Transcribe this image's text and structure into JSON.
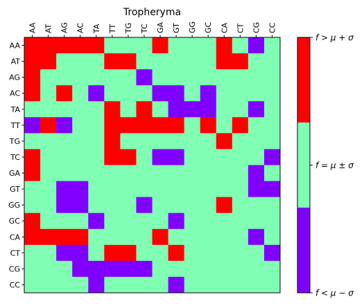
{
  "chart_data": {
    "type": "heatmap",
    "title": "Tropheryma",
    "xlabels": [
      "AA",
      "AT",
      "AG",
      "AC",
      "TA",
      "TT",
      "TG",
      "TC",
      "GA",
      "GT",
      "GG",
      "GC",
      "CA",
      "CT",
      "CG",
      "CC"
    ],
    "ylabels": [
      "AA",
      "AT",
      "AG",
      "AC",
      "TA",
      "TT",
      "TG",
      "TC",
      "GA",
      "GT",
      "GG",
      "GC",
      "CA",
      "CT",
      "CG",
      "CC"
    ],
    "xlabel_position": "top",
    "levels": [
      -1,
      0,
      1
    ],
    "level_meaning": {
      "-1": "f < mu - sigma",
      "0": "f = mu +/- sigma",
      "1": "f > mu + sigma"
    },
    "values": [
      [
        1,
        1,
        1,
        1,
        1,
        0,
        0,
        0,
        1,
        0,
        0,
        0,
        1,
        0,
        -1,
        0
      ],
      [
        1,
        1,
        0,
        0,
        0,
        1,
        1,
        0,
        0,
        0,
        0,
        0,
        1,
        1,
        0,
        0
      ],
      [
        1,
        0,
        0,
        0,
        0,
        0,
        0,
        -1,
        0,
        0,
        0,
        0,
        0,
        0,
        0,
        0
      ],
      [
        1,
        0,
        1,
        0,
        -1,
        0,
        0,
        0,
        -1,
        -1,
        0,
        -1,
        0,
        0,
        0,
        0
      ],
      [
        0,
        0,
        0,
        0,
        0,
        1,
        0,
        1,
        0,
        -1,
        -1,
        -1,
        0,
        0,
        -1,
        0
      ],
      [
        -1,
        1,
        -1,
        0,
        0,
        1,
        1,
        1,
        1,
        1,
        0,
        1,
        0,
        1,
        0,
        0
      ],
      [
        0,
        0,
        0,
        0,
        0,
        1,
        0,
        0,
        0,
        0,
        0,
        0,
        1,
        0,
        0,
        0
      ],
      [
        1,
        0,
        0,
        0,
        0,
        1,
        1,
        0,
        -1,
        -1,
        0,
        0,
        0,
        0,
        0,
        -1
      ],
      [
        1,
        0,
        0,
        0,
        0,
        0,
        0,
        0,
        0,
        0,
        0,
        0,
        0,
        0,
        -1,
        0
      ],
      [
        0,
        0,
        -1,
        -1,
        0,
        0,
        0,
        0,
        0,
        0,
        0,
        0,
        0,
        0,
        -1,
        -1
      ],
      [
        0,
        0,
        -1,
        -1,
        0,
        0,
        0,
        -1,
        0,
        0,
        0,
        0,
        1,
        0,
        0,
        0
      ],
      [
        1,
        0,
        0,
        0,
        -1,
        0,
        0,
        0,
        0,
        -1,
        0,
        0,
        0,
        0,
        0,
        0
      ],
      [
        1,
        1,
        1,
        1,
        0,
        0,
        0,
        0,
        1,
        0,
        0,
        0,
        0,
        0,
        -1,
        0
      ],
      [
        0,
        0,
        -1,
        -1,
        0,
        1,
        1,
        0,
        0,
        1,
        0,
        0,
        0,
        0,
        0,
        -1
      ],
      [
        0,
        0,
        0,
        -1,
        -1,
        -1,
        -1,
        -1,
        0,
        0,
        0,
        0,
        0,
        0,
        0,
        0
      ],
      [
        0,
        0,
        0,
        0,
        -1,
        0,
        0,
        0,
        0,
        -1,
        0,
        0,
        0,
        0,
        0,
        0
      ]
    ],
    "colors": {
      "low": "#8000ff",
      "mid": "#80ffb4",
      "high": "#ff0000"
    },
    "colorbar": {
      "labels": [
        "f > μ + σ",
        "f = μ ± σ",
        "f < μ − σ"
      ],
      "position": "right"
    },
    "grid": false,
    "legend": "colorbar right"
  }
}
